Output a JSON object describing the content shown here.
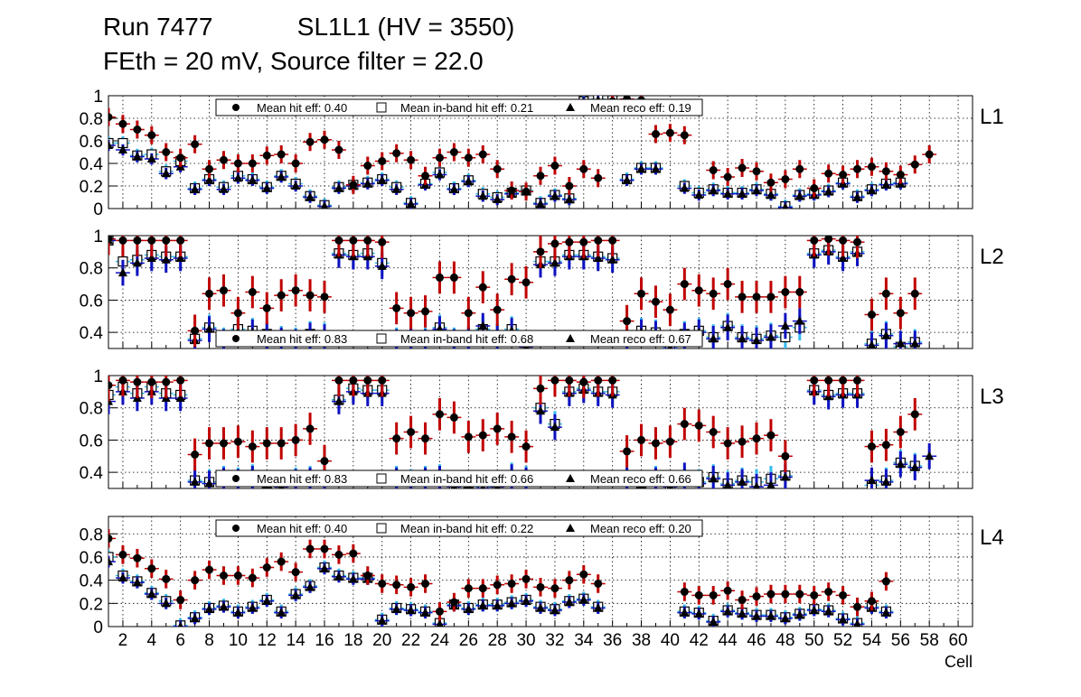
{
  "header": {
    "run": "Run 7477",
    "chamber": "SL1L1 (HV = 3550)",
    "settings": "FEth = 20 mV, Source filter = 22.0"
  },
  "colors": {
    "hit": "#000000",
    "hit_err": "#c00000",
    "inband": "#000000",
    "inband_err": "#33bbee",
    "reco": "#000000",
    "reco_err": "#1010c0",
    "grid": "#000000"
  },
  "chart_data": [
    {
      "type": "scatter",
      "name": "L1",
      "label": "L1",
      "ylim": [
        0,
        1.0
      ],
      "yticks": [
        "0",
        "0.2",
        "0.4",
        "0.6",
        "0.8",
        "1"
      ],
      "ytick_values": [
        0,
        0.2,
        0.4,
        0.6,
        0.8,
        1.0
      ],
      "legend": [
        "Mean hit  eff: 0.40",
        "Mean in-band hit eff: 0.21",
        "Mean reco eff: 0.19"
      ],
      "legend_position": "top",
      "series": [
        {
          "name": "hit",
          "marker": "circle",
          "err": 0.08,
          "values": [
            0.81,
            0.75,
            0.7,
            0.65,
            0.5,
            0.45,
            0.57,
            0.35,
            0.43,
            0.4,
            0.4,
            0.47,
            0.48,
            0.4,
            0.59,
            0.61,
            0.52,
            0.21,
            0.38,
            0.42,
            0.49,
            0.43,
            0.29,
            0.45,
            0.5,
            0.45,
            0.48,
            0.35,
            0.16,
            0.15,
            0.29,
            0.38,
            0.2,
            0.35,
            0.27,
            0.95,
            0.97,
            0.96,
            0.66,
            0.67,
            0.65,
            null,
            0.34,
            0.28,
            0.36,
            0.33,
            0.23,
            0.26,
            0.35,
            0.18,
            0.31,
            0.3,
            0.35,
            0.37,
            0.33,
            0.3,
            0.39,
            0.48,
            null,
            null
          ]
        },
        {
          "name": "in-band",
          "marker": "square",
          "err": 0.06,
          "values": [
            0.58,
            0.58,
            0.47,
            0.48,
            0.33,
            0.42,
            0.18,
            0.26,
            0.19,
            0.29,
            0.26,
            0.19,
            0.29,
            0.22,
            0.11,
            0.03,
            0.19,
            0.21,
            0.23,
            0.26,
            0.19,
            0.05,
            0.22,
            0.32,
            0.18,
            0.25,
            0.13,
            0.1,
            0.14,
            0.16,
            0.05,
            0.12,
            0.09,
            0.95,
            0.97,
            0.96,
            0.26,
            0.36,
            0.36,
            null,
            0.2,
            0.14,
            0.17,
            0.14,
            0.14,
            0.17,
            0.13,
            0.02,
            0.12,
            0.13,
            0.16,
            0.23,
            0.11,
            0.17,
            0.22,
            0.23,
            null,
            null,
            null,
            null
          ]
        },
        {
          "name": "reco",
          "marker": "triangle",
          "err": 0.05,
          "values": [
            0.56,
            0.52,
            0.46,
            0.44,
            0.31,
            0.37,
            0.17,
            0.25,
            0.17,
            0.27,
            0.25,
            0.18,
            0.28,
            0.2,
            0.1,
            0.02,
            0.18,
            0.2,
            0.22,
            0.25,
            0.17,
            0.04,
            0.21,
            0.3,
            0.17,
            0.24,
            0.11,
            0.08,
            0.13,
            0.15,
            0.04,
            0.11,
            0.08,
            0.94,
            0.96,
            0.95,
            0.25,
            0.35,
            0.35,
            null,
            0.18,
            0.12,
            0.16,
            0.13,
            0.13,
            0.16,
            0.12,
            0.01,
            0.11,
            0.12,
            0.15,
            0.22,
            0.1,
            0.16,
            0.21,
            0.22,
            null,
            null,
            null,
            null
          ]
        }
      ]
    },
    {
      "type": "scatter",
      "name": "L2",
      "label": "L2",
      "ylim": [
        0.3,
        1.0
      ],
      "yticks": [
        "0.4",
        "0.6",
        "0.8",
        "1"
      ],
      "ytick_values": [
        0.4,
        0.6,
        0.8,
        1.0
      ],
      "legend": [
        "Mean hit  eff: 0.83",
        "Mean in-band hit eff: 0.68",
        "Mean reco eff: 0.67"
      ],
      "legend_position": "bottom",
      "series": [
        {
          "name": "hit",
          "marker": "circle",
          "err": 0.1,
          "values": [
            0.98,
            0.97,
            0.97,
            0.97,
            0.97,
            0.97,
            0.41,
            0.64,
            0.66,
            0.52,
            0.65,
            0.55,
            0.63,
            0.66,
            0.63,
            0.62,
            0.97,
            0.97,
            0.97,
            0.96,
            0.55,
            0.52,
            0.53,
            0.74,
            0.74,
            0.52,
            0.68,
            0.54,
            0.73,
            0.71,
            0.9,
            0.95,
            0.96,
            0.96,
            0.97,
            0.97,
            0.47,
            0.64,
            0.59,
            0.54,
            0.7,
            0.66,
            0.64,
            0.7,
            0.62,
            0.62,
            0.62,
            0.65,
            0.65,
            0.97,
            0.98,
            0.97,
            0.96,
            0.51,
            0.64,
            0.52,
            0.64,
            null,
            null,
            null
          ]
        },
        {
          "name": "in-band",
          "marker": "square",
          "err": 0.08,
          "values": [
            0.97,
            0.84,
            0.85,
            0.88,
            0.87,
            0.87,
            0.36,
            0.43,
            0.35,
            0.42,
            0.41,
            0.39,
            0.36,
            0.35,
            0.39,
            0.38,
            0.89,
            0.88,
            0.89,
            0.83,
            0.35,
            0.36,
            0.35,
            0.43,
            0.35,
            0.36,
            0.42,
            0.38,
            0.42,
            0.32,
            0.84,
            0.84,
            0.88,
            0.88,
            0.87,
            0.86,
            0.35,
            0.41,
            0.4,
            0.31,
            0.39,
            0.41,
            0.37,
            0.44,
            0.37,
            0.36,
            0.38,
            0.37,
            0.43,
            0.89,
            0.91,
            0.87,
            0.9,
            0.33,
            0.39,
            0.31,
            0.34,
            null,
            null,
            null
          ]
        },
        {
          "name": "reco",
          "marker": "triangle",
          "err": 0.08,
          "values": [
            0.97,
            0.77,
            0.83,
            0.86,
            0.85,
            0.86,
            0.35,
            0.42,
            0.34,
            0.4,
            0.4,
            0.38,
            0.35,
            0.34,
            0.38,
            0.37,
            0.88,
            0.87,
            0.87,
            0.81,
            0.34,
            0.35,
            0.34,
            0.42,
            0.34,
            0.35,
            0.44,
            0.37,
            0.41,
            0.31,
            0.82,
            0.83,
            0.87,
            0.87,
            0.86,
            0.85,
            0.34,
            0.4,
            0.39,
            0.3,
            0.38,
            0.4,
            0.36,
            0.43,
            0.36,
            0.35,
            0.37,
            0.44,
            0.47,
            0.88,
            0.9,
            0.86,
            0.89,
            0.32,
            0.38,
            0.33,
            0.33,
            null,
            null,
            null
          ]
        }
      ]
    },
    {
      "type": "scatter",
      "name": "L3",
      "label": "L3",
      "ylim": [
        0.3,
        1.0
      ],
      "yticks": [
        "0.4",
        "0.6",
        "0.8",
        "1"
      ],
      "ytick_values": [
        0.4,
        0.6,
        0.8,
        1.0
      ],
      "legend": [
        "Mean hit  eff: 0.83",
        "Mean in-band hit eff: 0.66",
        "Mean reco eff: 0.66"
      ],
      "legend_position": "bottom",
      "series": [
        {
          "name": "hit",
          "marker": "circle",
          "err": 0.1,
          "values": [
            0.94,
            0.97,
            0.96,
            0.96,
            0.96,
            0.97,
            0.51,
            0.58,
            0.58,
            0.59,
            0.56,
            0.58,
            0.58,
            0.6,
            0.67,
            0.47,
            0.97,
            0.97,
            0.97,
            0.97,
            0.61,
            0.65,
            0.61,
            0.76,
            0.74,
            0.62,
            0.63,
            0.67,
            0.62,
            0.56,
            0.92,
            0.97,
            0.97,
            0.96,
            0.97,
            0.97,
            0.53,
            0.6,
            0.58,
            0.59,
            0.7,
            0.69,
            0.65,
            0.58,
            0.59,
            0.61,
            0.63,
            0.5,
            null,
            0.97,
            0.97,
            0.97,
            0.97,
            0.56,
            0.57,
            0.65,
            0.76,
            null,
            null,
            null
          ]
        },
        {
          "name": "in-band",
          "marker": "square",
          "err": 0.08,
          "values": [
            0.88,
            0.93,
            0.89,
            0.93,
            0.89,
            0.88,
            0.35,
            0.34,
            0.36,
            0.35,
            0.37,
            0.33,
            0.32,
            0.35,
            0.36,
            0.37,
            0.85,
            0.92,
            0.91,
            0.91,
            0.36,
            0.34,
            0.36,
            0.37,
            0.32,
            0.33,
            0.31,
            0.32,
            0.38,
            0.36,
            0.8,
            0.7,
            0.9,
            0.92,
            0.9,
            0.9,
            0.36,
            0.33,
            0.36,
            0.32,
            0.36,
            0.34,
            0.37,
            0.33,
            0.35,
            0.34,
            0.36,
            0.38,
            null,
            0.91,
            0.88,
            0.89,
            0.89,
            0.32,
            0.35,
            0.46,
            0.44,
            null,
            null,
            null
          ]
        },
        {
          "name": "reco",
          "marker": "triangle",
          "err": 0.08,
          "values": [
            0.84,
            0.9,
            0.86,
            0.9,
            0.86,
            0.86,
            0.34,
            0.33,
            0.35,
            0.34,
            0.36,
            0.32,
            0.31,
            0.34,
            0.35,
            0.36,
            0.84,
            0.9,
            0.89,
            0.89,
            0.35,
            0.33,
            0.35,
            0.36,
            0.31,
            0.32,
            0.3,
            0.31,
            0.37,
            0.35,
            0.78,
            0.68,
            0.89,
            0.91,
            0.89,
            0.88,
            0.35,
            0.32,
            0.35,
            0.31,
            0.38,
            0.33,
            0.36,
            0.32,
            0.34,
            0.31,
            0.32,
            0.37,
            null,
            0.9,
            0.87,
            0.88,
            0.88,
            0.35,
            0.34,
            0.45,
            0.43,
            0.5,
            null,
            null
          ]
        }
      ]
    },
    {
      "type": "scatter",
      "name": "L4",
      "label": "L4",
      "ylim": [
        0,
        0.95
      ],
      "yticks": [
        "0",
        "0.2",
        "0.4",
        "0.6",
        "0.8"
      ],
      "ytick_values": [
        0,
        0.2,
        0.4,
        0.6,
        0.8
      ],
      "legend": [
        "Mean hit  eff: 0.40",
        "Mean in-band hit eff: 0.22",
        "Mean reco eff: 0.20"
      ],
      "legend_position": "top",
      "xlabel": "Cell",
      "xticks": [
        "2",
        "4",
        "6",
        "8",
        "10",
        "12",
        "14",
        "16",
        "18",
        "20",
        "22",
        "24",
        "26",
        "28",
        "30",
        "32",
        "34",
        "36",
        "38",
        "40",
        "42",
        "44",
        "46",
        "48",
        "50",
        "52",
        "54",
        "56",
        "58",
        "60"
      ],
      "xtick_values": [
        2,
        4,
        6,
        8,
        10,
        12,
        14,
        16,
        18,
        20,
        22,
        24,
        26,
        28,
        30,
        32,
        34,
        36,
        38,
        40,
        42,
        44,
        46,
        48,
        50,
        52,
        54,
        56,
        58,
        60
      ],
      "series": [
        {
          "name": "hit",
          "marker": "circle",
          "err": 0.08,
          "values": [
            0.76,
            0.62,
            0.59,
            0.5,
            0.41,
            0.23,
            0.4,
            0.49,
            0.44,
            0.44,
            0.42,
            0.51,
            0.56,
            0.47,
            0.67,
            0.67,
            0.62,
            0.63,
            0.44,
            0.37,
            0.36,
            0.34,
            0.37,
            0.13,
            0.21,
            0.33,
            0.33,
            0.36,
            0.37,
            0.41,
            0.34,
            0.33,
            0.4,
            0.45,
            0.37,
            null,
            null,
            null,
            null,
            null,
            0.3,
            0.27,
            0.27,
            0.31,
            0.23,
            0.26,
            0.28,
            0.28,
            0.28,
            0.27,
            0.3,
            0.27,
            0.17,
            0.22,
            0.39,
            null,
            null,
            null,
            null,
            null
          ]
        },
        {
          "name": "in-band",
          "marker": "square",
          "err": 0.06,
          "values": [
            0.6,
            0.44,
            0.39,
            0.29,
            0.22,
            0.01,
            0.08,
            0.16,
            0.18,
            0.13,
            0.17,
            0.23,
            0.13,
            0.28,
            0.35,
            0.51,
            0.44,
            0.42,
            0.42,
            0.06,
            0.16,
            0.15,
            0.13,
            0.03,
            0.19,
            0.16,
            0.19,
            0.19,
            0.21,
            0.23,
            0.17,
            0.15,
            0.22,
            0.24,
            0.17,
            null,
            null,
            null,
            null,
            null,
            0.13,
            0.12,
            0.05,
            0.14,
            0.12,
            0.1,
            0.1,
            0.08,
            0.11,
            0.15,
            0.14,
            0.07,
            0.03,
            0.17,
            0.13,
            null,
            null,
            null,
            null,
            null
          ]
        },
        {
          "name": "reco",
          "marker": "triangle",
          "err": 0.05,
          "values": [
            0.56,
            0.42,
            0.38,
            0.28,
            0.2,
            0.0,
            0.07,
            0.15,
            0.17,
            0.12,
            0.16,
            0.22,
            0.12,
            0.27,
            0.34,
            0.5,
            0.43,
            0.41,
            0.41,
            0.05,
            0.15,
            0.14,
            0.12,
            0.02,
            0.18,
            0.15,
            0.18,
            0.18,
            0.2,
            0.22,
            0.16,
            0.14,
            0.21,
            0.23,
            0.16,
            null,
            null,
            null,
            null,
            null,
            0.12,
            0.11,
            0.04,
            0.13,
            0.11,
            0.09,
            0.09,
            0.07,
            0.1,
            0.14,
            0.13,
            0.06,
            0.02,
            0.16,
            0.12,
            null,
            null,
            null,
            null,
            null
          ]
        }
      ]
    }
  ]
}
